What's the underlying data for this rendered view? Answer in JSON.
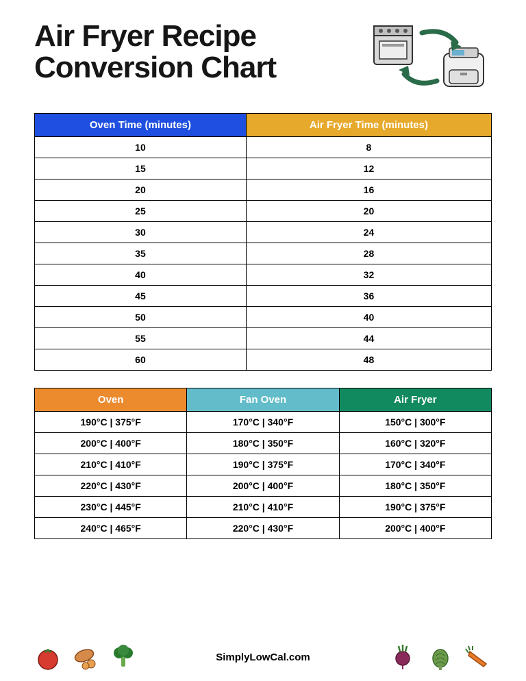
{
  "title_line1": "Air Fryer Recipe",
  "title_line2": "Conversion Chart",
  "time_table": {
    "headers": [
      "Oven Time (minutes)",
      "Air Fryer Time (minutes)"
    ],
    "header_colors": [
      "#1f4fe0",
      "#e7a92b"
    ],
    "rows": [
      [
        "10",
        "8"
      ],
      [
        "15",
        "12"
      ],
      [
        "20",
        "16"
      ],
      [
        "25",
        "20"
      ],
      [
        "30",
        "24"
      ],
      [
        "35",
        "28"
      ],
      [
        "40",
        "32"
      ],
      [
        "45",
        "36"
      ],
      [
        "50",
        "40"
      ],
      [
        "55",
        "44"
      ],
      [
        "60",
        "48"
      ]
    ]
  },
  "temp_table": {
    "headers": [
      "Oven",
      "Fan Oven",
      "Air Fryer"
    ],
    "header_colors": [
      "#ec8a2e",
      "#62bcc9",
      "#128a5f"
    ],
    "rows": [
      [
        "190°C | 375°F",
        "170°C | 340°F",
        "150°C | 300°F"
      ],
      [
        "200°C | 400°F",
        "180°C | 350°F",
        "160°C | 320°F"
      ],
      [
        "210°C | 410°F",
        "190°C | 375°F",
        "170°C | 340°F"
      ],
      [
        "220°C | 430°F",
        "200°C | 400°F",
        "180°C | 350°F"
      ],
      [
        "230°C | 445°F",
        "210°C | 410°F",
        "190°C | 375°F"
      ],
      [
        "240°C | 465°F",
        "220°C | 430°F",
        "200°C | 400°F"
      ]
    ]
  },
  "footer_site": "SimplyLowCal.com",
  "colors": {
    "arrow": "#2a6b4a",
    "tomato": "#d73a2e",
    "sweet_potato": "#d68a4a",
    "broccoli": "#2a7a2e",
    "beet": "#8a2a5a",
    "artichoke": "#6a9a4a",
    "carrot": "#e87a2a"
  }
}
